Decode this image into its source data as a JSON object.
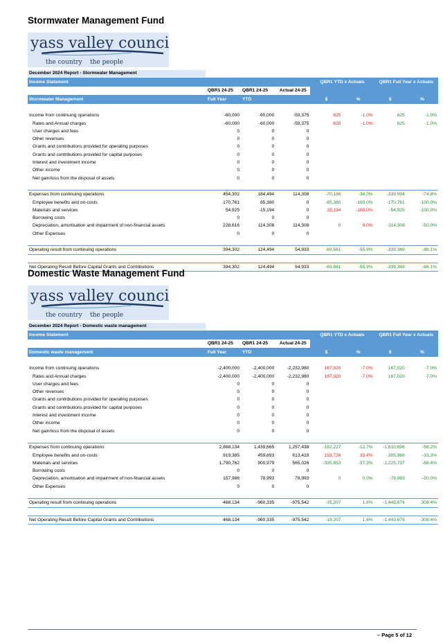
{
  "logo": {
    "name": "yass valley council",
    "tagline_left": "the country",
    "tagline_right": "the people"
  },
  "column_headers": {
    "income_statement": "Income Statement",
    "qbr1_ytd_vs_actuals": "QBR1 YTD x Actuals",
    "qbr1_full_year_vs_actuals": "QBR1 Full Year x Actuals",
    "qbr_full_year_line1": "QBR1 24-25",
    "qbr_full_year_line2": "Full Year",
    "qbr_ytd_line1": "QBR1 24-25",
    "qbr_ytd_line2": "YTD",
    "actual": "Actual 24-25",
    "dollar": "$",
    "pct": "%"
  },
  "sections": [
    {
      "title": "Stormwater Management Fund",
      "report_title": "December 2024 Report - Stormwater Management",
      "table_label": "Stormwater Management",
      "rows": [
        {
          "label": "Income from continuing operations",
          "fy": "-60,000",
          "ytd": "-60,000",
          "actual": "-59,375",
          "v1": "625",
          "p1": "-1.0%",
          "v2": "625",
          "p2": "-1.0%",
          "bold": true
        },
        {
          "label": "Rates and Annual charges",
          "fy": "-60,000",
          "ytd": "-60,000",
          "actual": "-59,375",
          "v1": "625",
          "p1": "-1.0%",
          "v2": "625",
          "p2": "-1.0%"
        },
        {
          "label": "User charges and fees",
          "fy": "0",
          "ytd": "0",
          "actual": "0",
          "v1": "",
          "p1": "",
          "v2": "",
          "p2": ""
        },
        {
          "label": "Other revenues",
          "fy": "0",
          "ytd": "0",
          "actual": "0",
          "v1": "",
          "p1": "",
          "v2": "",
          "p2": ""
        },
        {
          "label": "Grants and contributions provided for operating purposes",
          "fy": "0",
          "ytd": "0",
          "actual": "0",
          "v1": "",
          "p1": "",
          "v2": "",
          "p2": ""
        },
        {
          "label": "Grants and contributions provided for capital purposes",
          "fy": "0",
          "ytd": "0",
          "actual": "0",
          "v1": "",
          "p1": "",
          "v2": "",
          "p2": ""
        },
        {
          "label": "Interest and investment income",
          "fy": "0",
          "ytd": "0",
          "actual": "0",
          "v1": "",
          "p1": "",
          "v2": "",
          "p2": ""
        },
        {
          "label": "Other income",
          "fy": "0",
          "ytd": "0",
          "actual": "0",
          "v1": "",
          "p1": "",
          "v2": "",
          "p2": ""
        },
        {
          "label": "Net gain/loss from the disposal of assets",
          "fy": "0",
          "ytd": "0",
          "actual": "0",
          "v1": "",
          "p1": "",
          "v2": "",
          "p2": ""
        },
        {
          "label": "Expenses from continuing operations",
          "fy": "454,302",
          "ytd": "184,494",
          "actual": "114,308",
          "v1": "-70,186",
          "p1": "-38.0%",
          "v2": "-339,994",
          "p2": "-74.8%",
          "bold": true,
          "topline": true
        },
        {
          "label": "Employee benefits and on-costs",
          "fy": "170,761",
          "ytd": "85,380",
          "actual": "0",
          "v1": "-85,380",
          "p1": "-100.0%",
          "v2": "-170,761",
          "p2": "-100.0%"
        },
        {
          "label": "Materials and services",
          "fy": "54,925",
          "ytd": "-15,194",
          "actual": "0",
          "v1": "15,194",
          "p1": "-100.0%",
          "v2": "-54,925",
          "p2": "-100.0%",
          "v1red": true
        },
        {
          "label": "Borrowing costs",
          "fy": "0",
          "ytd": "0",
          "actual": "0",
          "v1": "",
          "p1": "",
          "v2": "",
          "p2": ""
        },
        {
          "label": "Depreciation, amortisation and impairment of non-financial assets",
          "fy": "228,616",
          "ytd": "114,308",
          "actual": "114,308",
          "v1": "0",
          "p1": "0.0%",
          "v2": "-114,308",
          "p2": "-50.0%",
          "v1red": true
        },
        {
          "label": "Other Expenses",
          "fy": "0",
          "ytd": "0",
          "actual": "0",
          "v1": "",
          "p1": "",
          "v2": "",
          "p2": ""
        }
      ],
      "operating": {
        "label": "Operating result from continuing operations",
        "fy": "394,302",
        "ytd": "124,494",
        "actual": "54,933",
        "v1": "-69,561",
        "p1": "-55.9%",
        "v2": "-339,369",
        "p2": "-86.1%"
      },
      "net": {
        "label": "Net Operating Result Before Capital Grants and Contributions",
        "fy": "394,302",
        "ytd": "124,494",
        "actual": "54,933",
        "v1": "-69,561",
        "p1": "-55.9%",
        "v2": "-339,369",
        "p2": "-86.1%"
      }
    },
    {
      "title": "Domestic Waste Management Fund",
      "report_title": "December 2024 Report - Domestic waste management",
      "table_label": "Domestic waste management",
      "rows": [
        {
          "label": "Income from continuing operations",
          "fy": "-2,400,000",
          "ytd": "-2,400,000",
          "actual": "-2,232,980",
          "v1": "167,020",
          "p1": "-7.0%",
          "v2": "167,020",
          "p2": "-7.0%",
          "bold": true
        },
        {
          "label": "Rates and Annual charges",
          "fy": "-2,400,000",
          "ytd": "-2,400,000",
          "actual": "-2,232,980",
          "v1": "167,020",
          "p1": "-7.0%",
          "v2": "167,020",
          "p2": "-7.0%"
        },
        {
          "label": "User charges and fees",
          "fy": "0",
          "ytd": "0",
          "actual": "0",
          "v1": "",
          "p1": "",
          "v2": "",
          "p2": ""
        },
        {
          "label": "Other revenues",
          "fy": "0",
          "ytd": "0",
          "actual": "0",
          "v1": "",
          "p1": "",
          "v2": "",
          "p2": ""
        },
        {
          "label": "Grants and contributions provided for operating purposes",
          "fy": "0",
          "ytd": "0",
          "actual": "0",
          "v1": "",
          "p1": "",
          "v2": "",
          "p2": ""
        },
        {
          "label": "Grants and contributions provided for capital purposes",
          "fy": "0",
          "ytd": "0",
          "actual": "0",
          "v1": "",
          "p1": "",
          "v2": "",
          "p2": ""
        },
        {
          "label": "Interest and investment income",
          "fy": "0",
          "ytd": "0",
          "actual": "0",
          "v1": "",
          "p1": "",
          "v2": "",
          "p2": ""
        },
        {
          "label": "Other income",
          "fy": "0",
          "ytd": "0",
          "actual": "0",
          "v1": "",
          "p1": "",
          "v2": "",
          "p2": ""
        },
        {
          "label": "Net gain/loss from the disposal of assets",
          "fy": "0",
          "ytd": "0",
          "actual": "0",
          "v1": "",
          "p1": "",
          "v2": "",
          "p2": ""
        },
        {
          "label": "Expenses from continuing operations",
          "fy": "2,868,134",
          "ytd": "1,439,665",
          "actual": "1,257,438",
          "v1": "-182,227",
          "p1": "-12.7%",
          "v2": "-1,610,696",
          "p2": "-56.2%",
          "bold": true,
          "topline": true
        },
        {
          "label": "Employee benefits and on-costs",
          "fy": "919,385",
          "ytd": "459,693",
          "actual": "613,419",
          "v1": "153,726",
          "p1": "33.4%",
          "v2": "-305,966",
          "p2": "-33.3%",
          "v1red": true,
          "p1red": true
        },
        {
          "label": "Materials and services",
          "fy": "1,790,762",
          "ytd": "900,979",
          "actual": "565,026",
          "v1": "-335,953",
          "p1": "-37.3%",
          "v2": "-1,225,737",
          "p2": "-68.4%"
        },
        {
          "label": "Borrowing costs",
          "fy": "0",
          "ytd": "0",
          "actual": "0",
          "v1": "",
          "p1": "",
          "v2": "",
          "p2": ""
        },
        {
          "label": "Depreciation, amortisation and impairment of non-financial assets",
          "fy": "157,986",
          "ytd": "78,993",
          "actual": "78,993",
          "v1": "0",
          "p1": "0.0%",
          "v2": "-78,993",
          "p2": "-50.0%"
        },
        {
          "label": "Other Expenses",
          "fy": "0",
          "ytd": "0",
          "actual": "0",
          "v1": "",
          "p1": "",
          "v2": "",
          "p2": ""
        }
      ],
      "operating": {
        "label": "Operating result from continuing operations",
        "fy": "468,134",
        "ytd": "-960,335",
        "actual": "-975,542",
        "v1": "-15,207",
        "p1": "1.6%",
        "v2": "-1,443,676",
        "p2": "-308.4%"
      },
      "net": {
        "label": "Net Operating Result Before Capital Grants and Contributions",
        "fy": "468,134",
        "ytd": "-960,335",
        "actual": "-975,542",
        "v1": "-15,207",
        "p1": "1.6%",
        "v2": "-1,443,676",
        "p2": "-308.4%"
      }
    }
  ],
  "footer": {
    "page_label": "– Page 5 of 12"
  },
  "colors": {
    "header_blue": "#5b9bd5",
    "light_blue": "#dbe7f4",
    "positive": "#2a8a3c",
    "negative": "#e0211d",
    "logo_navy": "#1f3864"
  }
}
